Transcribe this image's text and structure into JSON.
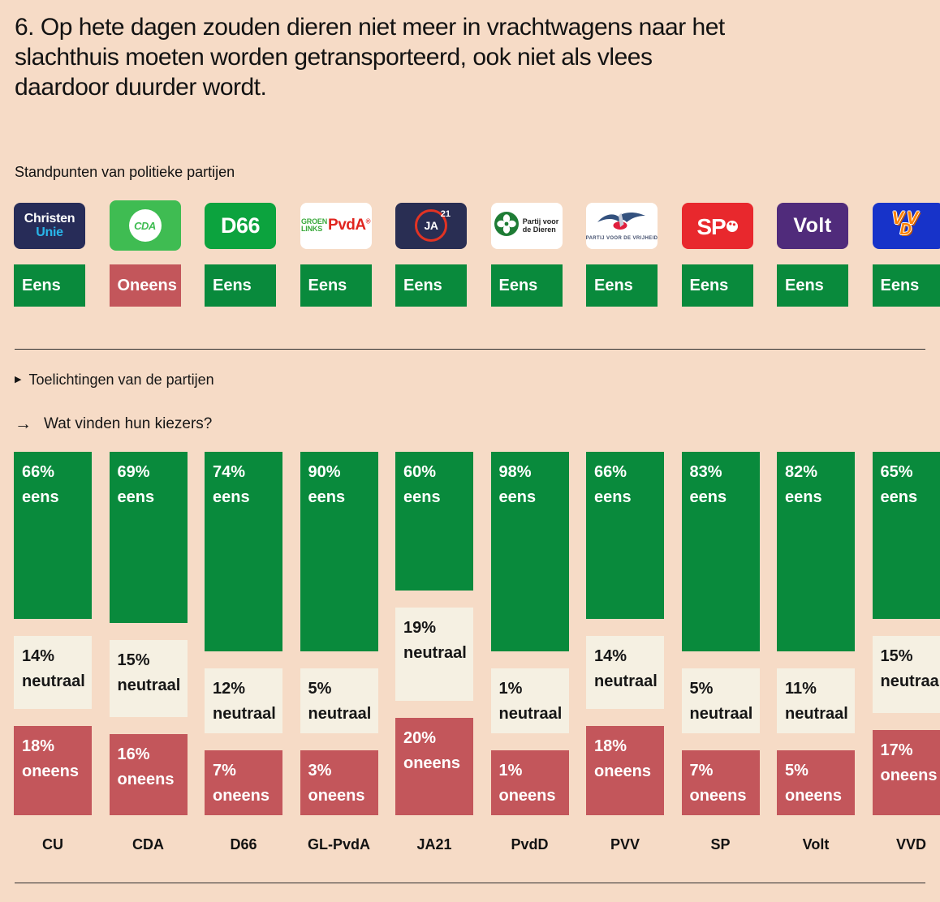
{
  "page": {
    "title_lines": [
      "6. Op hete dagen zouden dieren niet meer in vrachtwagens naar het",
      "slachthuis moeten worden getransporteerd, ook niet als vlees",
      "daardoor duurder wordt."
    ],
    "standpunten_heading": "Standpunten van politieke partijen",
    "toelichtingen_marker": "▶",
    "toelichtingen_label": "Toelichtingen van de partijen",
    "kiezers_marker": "→",
    "kiezers_label": "Wat vinden hun kiezers?"
  },
  "colors": {
    "background": "#f6dbc6",
    "agree": "#098a3c",
    "disagree": "#c3565b",
    "neutral_block": "#f5f0e2",
    "divider": "#2e2e2e"
  },
  "parties": [
    {
      "id": "cu",
      "abbr": "CU",
      "stance": "Eens",
      "logo": {
        "line1": "Christen",
        "line2": "Unie"
      }
    },
    {
      "id": "cda",
      "abbr": "CDA",
      "stance": "Oneens",
      "logo": {
        "text": "CDA"
      }
    },
    {
      "id": "d66",
      "abbr": "D66",
      "stance": "Eens",
      "logo": {
        "text": "D66"
      }
    },
    {
      "id": "gl",
      "abbr": "GL-PvdA",
      "stance": "Eens",
      "logo": {
        "groen": "GROEN",
        "links": "LINKS",
        "pvda": "PvdA",
        "reg": "®"
      }
    },
    {
      "id": "ja21",
      "abbr": "JA21",
      "stance": "Eens",
      "logo": {
        "ja": "JA",
        "sup": "21"
      }
    },
    {
      "id": "pvdd",
      "abbr": "PvdD",
      "stance": "Eens",
      "logo": {
        "line1": "Partij voor",
        "line2": "de Dieren"
      }
    },
    {
      "id": "pvv",
      "abbr": "PVV",
      "stance": "Eens",
      "logo": {
        "caption_normal": "PARTIJ VOOR DE ",
        "caption_bold": "VRIJHEID"
      }
    },
    {
      "id": "sp",
      "abbr": "SP",
      "stance": "Eens",
      "logo": {
        "text": "SP"
      }
    },
    {
      "id": "volt",
      "abbr": "Volt",
      "stance": "Eens",
      "logo": {
        "text": "Volt"
      }
    },
    {
      "id": "vvd",
      "abbr": "VVD",
      "stance": "Eens",
      "logo": {
        "v1": "V",
        "v2": "V",
        "d": "D"
      }
    }
  ],
  "chart_data": {
    "type": "bar",
    "stacked": true,
    "orientation": "vertical",
    "value_suffix": "%",
    "categories": [
      "CU",
      "CDA",
      "D66",
      "GL-PvdA",
      "JA21",
      "PvdD",
      "PVV",
      "SP",
      "Volt",
      "VVD"
    ],
    "series": [
      {
        "name": "eens",
        "color": "#098a3c",
        "text_color": "#ffffff",
        "values": [
          66,
          69,
          74,
          90,
          60,
          98,
          66,
          83,
          82,
          65
        ]
      },
      {
        "name": "neutraal",
        "color": "#f5f0e2",
        "text_color": "#161616",
        "values": [
          14,
          15,
          12,
          5,
          19,
          1,
          14,
          5,
          11,
          15
        ]
      },
      {
        "name": "oneens",
        "color": "#c3565b",
        "text_color": "#ffffff",
        "values": [
          18,
          16,
          7,
          3,
          20,
          1,
          18,
          7,
          5,
          17
        ]
      }
    ],
    "ylim": [
      0,
      100
    ],
    "grid": false,
    "legend": "labels-inside-segments"
  }
}
